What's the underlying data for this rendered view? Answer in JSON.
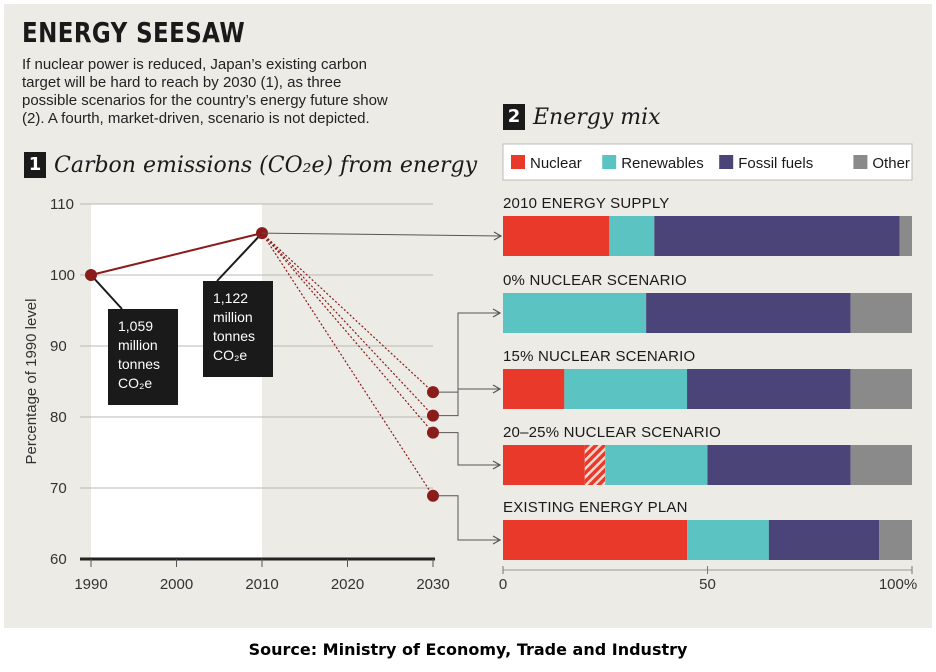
{
  "headline": "ENERGY SEESAW",
  "intro_lines": [
    "If nuclear power is reduced, Japan’s existing carbon",
    "target will be hard to reach by 2030 (1), as three",
    "possible scenarios for the country’s energy future show",
    "(2). A fourth, market-driven, scenario is not depicted."
  ],
  "section1": {
    "num": "1",
    "title": "Carbon emissions (CO₂e) from energy"
  },
  "section2": {
    "num": "2",
    "title": "Energy mix"
  },
  "source": "Source: Ministry of Economy, Trade and Industry",
  "colors": {
    "Nuclear": "#e8392b",
    "Renewables": "#5bc4c3",
    "Fossil fuels": "#4a4478",
    "Other": "#8a8a8a",
    "marker": "#8b1c1c",
    "callout_bg": "#1a1a1a"
  },
  "chart_data": [
    {
      "type": "line",
      "title": "Carbon emissions (CO₂e) from energy",
      "ylabel": "Percentage of 1990 level",
      "xlabel": "",
      "x_ticks": [
        "1990",
        "2000",
        "2010",
        "2020",
        "2030"
      ],
      "y_ticks": [
        "60",
        "70",
        "80",
        "90",
        "100",
        "110"
      ],
      "xlim": [
        1990,
        2030
      ],
      "ylim": [
        60,
        110
      ],
      "shaded_range": [
        1990,
        2010
      ],
      "historical": [
        {
          "x": 1990,
          "y": 100
        },
        {
          "x": 2010,
          "y": 105.9
        }
      ],
      "projections_2030": [
        {
          "scenario": "0% NUCLEAR SCENARIO",
          "y": 83.5
        },
        {
          "scenario": "15% NUCLEAR SCENARIO",
          "y": 80.2
        },
        {
          "scenario": "20–25% NUCLEAR SCENARIO",
          "y": 77.8
        },
        {
          "scenario": "EXISTING ENERGY PLAN",
          "y": 68.9
        }
      ],
      "annotations": [
        {
          "year": 1990,
          "lines": [
            "1,059",
            "million",
            "tonnes",
            "CO₂e"
          ]
        },
        {
          "year": 2010,
          "lines": [
            "1,122",
            "million",
            "tonnes",
            "CO₂e"
          ]
        }
      ]
    },
    {
      "type": "bar",
      "orientation": "horizontal",
      "stacked": true,
      "title": "Energy mix",
      "x_ticks": [
        "0",
        "50",
        "100%"
      ],
      "xlim": [
        0,
        100
      ],
      "legend": [
        "Nuclear",
        "Renewables",
        "Fossil fuels",
        "Other"
      ],
      "legend_position": "top",
      "categories": [
        "2010 ENERGY SUPPLY",
        "0% NUCLEAR SCENARIO",
        "15% NUCLEAR SCENARIO",
        "20–25% NUCLEAR SCENARIO",
        "EXISTING ENERGY PLAN"
      ],
      "series": [
        {
          "name": "Nuclear",
          "values": [
            26,
            0,
            15,
            20,
            45
          ]
        },
        {
          "name": "Nuclear",
          "note": "hatched",
          "values": [
            0,
            0,
            0,
            5,
            0
          ]
        },
        {
          "name": "Renewables",
          "values": [
            11,
            35,
            30,
            25,
            20
          ]
        },
        {
          "name": "Fossil fuels",
          "values": [
            60,
            50,
            40,
            35,
            27
          ]
        },
        {
          "name": "Other",
          "values": [
            3,
            15,
            15,
            15,
            8
          ]
        }
      ]
    }
  ]
}
